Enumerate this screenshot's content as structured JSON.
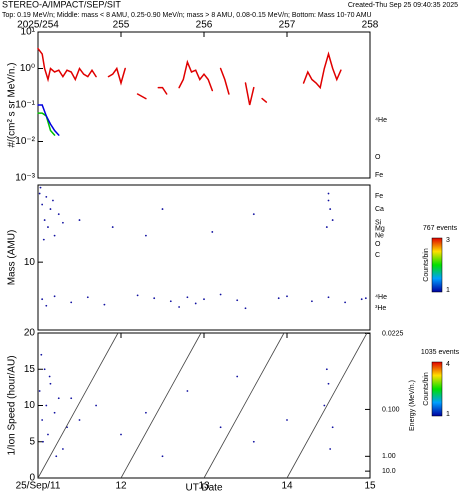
{
  "header": {
    "title": "STEREO-A/IMPACT/SEP/SIT",
    "created": "Created-Thu Sep 25 09:40:35 2025",
    "subtitle": "Top: 0.19 MeV/n; Middle: mass < 8 AMU, 0.25-0.90 MeV/n; mass > 8 AMU, 0.08-0.15 MeV/n; Bottom: Mass 10-70 AMU"
  },
  "chart_data": [
    {
      "type": "line",
      "y_label": "#/(cm² s sr MeV/n.)",
      "log_y": true,
      "xlim": [
        254,
        258
      ],
      "xticks": [
        {
          "value": 254,
          "label": "2025/254"
        },
        255,
        256,
        257,
        258
      ],
      "ylim": [
        0.001,
        10
      ],
      "yticks": [
        {
          "value": 0.001,
          "label": "10⁻³"
        },
        {
          "value": 0.01,
          "label": "10⁻²"
        },
        {
          "value": 0.1,
          "label": "10⁻¹"
        },
        {
          "value": 1,
          "label": "10⁰"
        },
        {
          "value": 10,
          "label": "10¹"
        }
      ],
      "series": [
        {
          "name": "⁴He",
          "color": "#e00000",
          "x": [
            254.0,
            254.05,
            254.08,
            254.12,
            254.15,
            254.2,
            254.25,
            254.3,
            254.35,
            254.4,
            254.45,
            254.5,
            254.55,
            254.6,
            254.65,
            254.7,
            254.78,
            254.85,
            254.9,
            254.95,
            255.0,
            255.05,
            255.12,
            255.2,
            255.3,
            255.38,
            255.45,
            255.5,
            255.55,
            255.62,
            255.7,
            255.75,
            255.8,
            255.85,
            255.9,
            255.95,
            256.0,
            256.05,
            256.1,
            256.15,
            256.2,
            256.25,
            256.3,
            256.4,
            256.5,
            256.55,
            256.6,
            256.65,
            256.7,
            256.75,
            256.8,
            256.85,
            256.95,
            257.05,
            257.12,
            257.2,
            257.25,
            257.3,
            257.35,
            257.4,
            257.45,
            257.5,
            257.55,
            257.6,
            257.65
          ],
          "values": [
            3.5,
            2.5,
            1.0,
            0.5,
            1.0,
            0.8,
            0.9,
            0.6,
            0.9,
            0.8,
            0.5,
            1.0,
            0.7,
            0.6,
            0.9,
            0.6,
            null,
            0.6,
            0.7,
            1.0,
            0.4,
            1.0,
            null,
            0.2,
            0.15,
            null,
            0.3,
            0.3,
            0.2,
            null,
            0.3,
            0.5,
            1.5,
            0.8,
            0.9,
            0.5,
            0.7,
            0.5,
            0.25,
            null,
            1.0,
            0.5,
            0.2,
            null,
            0.4,
            0.1,
            0.3,
            null,
            0.15,
            0.12,
            null,
            0.15,
            null,
            0.2,
            null,
            0.4,
            0.8,
            0.5,
            0.4,
            0.3,
            1.0,
            2.5,
            1.0,
            0.5,
            0.9
          ]
        },
        {
          "name": "O",
          "color": "#00c000",
          "x": [
            254.0,
            254.05,
            254.1,
            254.15,
            254.2
          ],
          "values": [
            0.06,
            0.06,
            0.05,
            0.02,
            0.015
          ]
        },
        {
          "name": "Fe",
          "color": "#0000e0",
          "x": [
            254.0,
            254.05,
            254.1,
            254.15,
            254.2,
            254.25
          ],
          "values": [
            0.1,
            0.1,
            0.05,
            0.03,
            0.02,
            0.015
          ]
        }
      ]
    },
    {
      "type": "scatter",
      "y_label": "Mass (AMU)",
      "log_y": true,
      "xlim": [
        254,
        258
      ],
      "ylim": [
        1.7,
        75
      ],
      "yticks": [
        10
      ],
      "color": "#1010a0",
      "species": [
        "Fe",
        "Ca",
        "Si",
        "Mg",
        "Ne",
        "O",
        "C",
        "⁴He",
        "³He"
      ],
      "species_mass": [
        56,
        40,
        28,
        24,
        20,
        16,
        12,
        4,
        3
      ],
      "events": "767 events",
      "colorbar_label": "Counts/bin",
      "colorbar_ticks": [
        1,
        3
      ],
      "x": [
        254.02,
        254.05,
        254.08,
        254.1,
        254.12,
        254.15,
        254.2,
        254.25,
        254.3,
        254.03,
        254.07,
        254.18,
        254.5,
        254.9,
        255.3,
        255.5,
        256.1,
        256.6,
        257.5,
        257.52,
        257.55,
        257.48,
        257.5,
        254.05,
        254.2,
        254.4,
        254.6,
        254.8,
        255.2,
        255.4,
        255.6,
        255.8,
        255.9,
        256.0,
        256.2,
        256.4,
        256.9,
        257.0,
        257.3,
        257.5,
        257.7,
        257.9,
        257.95,
        254.1,
        255.7,
        256.5
      ],
      "y": [
        60,
        45,
        30,
        55,
        25,
        40,
        20,
        35,
        28,
        70,
        18,
        50,
        30,
        25,
        20,
        40,
        22,
        35,
        60,
        40,
        30,
        25,
        50,
        3.8,
        4.1,
        3.5,
        4.0,
        3.3,
        4.2,
        3.9,
        3.6,
        4.0,
        3.4,
        3.8,
        4.3,
        3.7,
        3.9,
        4.1,
        3.6,
        4.0,
        3.5,
        3.8,
        3.9,
        3.2,
        3.1,
        3.0
      ]
    },
    {
      "type": "scatter",
      "y_label": "1/Ion Speed (hour/AU)",
      "x_label": "UT Date",
      "xlim": [
        254,
        258
      ],
      "xticks": [
        {
          "value": 254,
          "label": "25/Sep/11"
        },
        {
          "value": 255,
          "label": "12"
        },
        {
          "value": 256,
          "label": "13"
        },
        {
          "value": 257,
          "label": "14"
        },
        {
          "value": 258,
          "label": "15"
        }
      ],
      "ylim": [
        0,
        20
      ],
      "yticks": [
        0,
        5,
        10,
        15,
        20
      ],
      "y2_label": "Energy (MeV/n.)",
      "y2ticks": [
        0.0225,
        {
          "value": 0.1,
          "label": "0.100"
        },
        {
          "value": 1,
          "label": "1.00"
        },
        {
          "value": 10,
          "label": "10.0"
        }
      ],
      "color": "#1010a0",
      "events": "1035 events",
      "colorbar_label": "Counts/bin",
      "colorbar_ticks": [
        1,
        4
      ],
      "x": [
        254.02,
        254.05,
        254.08,
        254.1,
        254.12,
        254.15,
        254.2,
        254.25,
        254.3,
        254.35,
        254.04,
        254.06,
        254.14,
        254.22,
        254.5,
        254.7,
        255.0,
        255.3,
        255.8,
        256.2,
        256.6,
        257.0,
        257.45,
        257.5,
        257.55,
        257.48,
        257.52,
        254.4,
        255.5,
        256.4
      ],
      "y": [
        12,
        8,
        15,
        10,
        6,
        13,
        9,
        11,
        4,
        7,
        17,
        5,
        14,
        3,
        8,
        10,
        6,
        9,
        12,
        7,
        5,
        8,
        10,
        13,
        7,
        15,
        4,
        11,
        3,
        14
      ]
    }
  ]
}
